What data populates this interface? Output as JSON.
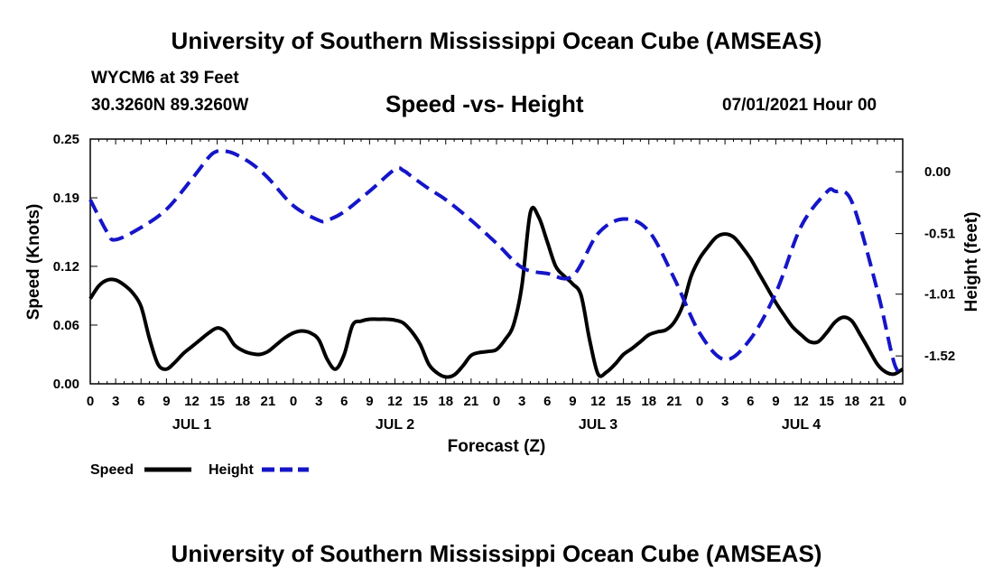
{
  "header": {
    "title": "University of Southern Mississippi Ocean Cube (AMSEAS)",
    "station": "WYCM6 at 39 Feet",
    "coords": "30.3260N  89.3260W",
    "chart_title": "Speed -vs- Height",
    "datetime": "07/01/2021 Hour 00"
  },
  "footer": {
    "title": "University of Southern Mississippi Ocean Cube (AMSEAS)"
  },
  "chart_data": {
    "type": "line",
    "title": "Speed -vs- Height",
    "xlabel": "Forecast (Z)",
    "ylabel_left": "Speed (Knots)",
    "ylabel_right": "Height (feet)",
    "xlim": [
      0,
      96
    ],
    "ylim_left": [
      0,
      0.25
    ],
    "ylim_right": [
      -1.75,
      0.27
    ],
    "x_tick_step": 3,
    "x_tick_labels": [
      "0",
      "3",
      "6",
      "9",
      "12",
      "15",
      "18",
      "21",
      "0",
      "3",
      "6",
      "9",
      "12",
      "15",
      "18",
      "21",
      "0",
      "3",
      "6",
      "9",
      "12",
      "15",
      "18",
      "21",
      "0",
      "3",
      "6",
      "9",
      "12",
      "15",
      "18",
      "21",
      "0"
    ],
    "y_left_ticks": [
      0.0,
      0.06,
      0.12,
      0.19,
      0.25
    ],
    "y_left_tick_labels": [
      "0.00",
      "0.06",
      "0.12",
      "0.19",
      "0.25"
    ],
    "y_right_ticks": [
      0.0,
      -0.51,
      -1.01,
      -1.52
    ],
    "y_right_tick_labels": [
      "0.00",
      "-0.51",
      "-1.01",
      "-1.52"
    ],
    "day_labels": [
      {
        "label": "JUL 1",
        "x": 12
      },
      {
        "label": "JUL 2",
        "x": 36
      },
      {
        "label": "JUL 3",
        "x": 60
      },
      {
        "label": "JUL 4",
        "x": 84
      }
    ],
    "series": [
      {
        "name": "Speed",
        "axis": "left",
        "color": "#000000",
        "dash": "solid",
        "x": [
          0,
          1,
          2,
          3,
          4,
          5,
          6,
          7,
          8,
          9,
          10,
          11,
          12,
          13,
          14,
          15,
          16,
          17,
          18,
          19,
          20,
          21,
          22,
          23,
          24,
          25,
          26,
          27,
          28,
          29,
          30,
          31,
          32,
          33,
          34,
          35,
          36,
          37,
          38,
          39,
          40,
          41,
          42,
          43,
          44,
          45,
          46,
          47,
          48,
          49,
          50,
          51,
          52,
          53,
          54,
          55,
          56,
          57,
          58,
          59,
          60,
          61,
          62,
          63,
          64,
          65,
          66,
          67,
          68,
          69,
          70,
          71,
          72,
          73,
          74,
          75,
          76,
          77,
          78,
          79,
          80,
          81,
          82,
          83,
          84,
          85,
          86,
          87,
          88,
          89,
          90,
          91,
          92,
          93,
          94,
          95,
          96
        ],
        "values": [
          0.087,
          0.1,
          0.106,
          0.106,
          0.101,
          0.093,
          0.079,
          0.046,
          0.02,
          0.015,
          0.022,
          0.031,
          0.038,
          0.045,
          0.052,
          0.057,
          0.053,
          0.04,
          0.034,
          0.031,
          0.03,
          0.033,
          0.04,
          0.047,
          0.052,
          0.054,
          0.052,
          0.045,
          0.025,
          0.015,
          0.03,
          0.06,
          0.064,
          0.066,
          0.066,
          0.066,
          0.065,
          0.062,
          0.053,
          0.04,
          0.02,
          0.011,
          0.007,
          0.009,
          0.018,
          0.029,
          0.032,
          0.033,
          0.035,
          0.045,
          0.06,
          0.1,
          0.175,
          0.17,
          0.145,
          0.12,
          0.11,
          0.102,
          0.09,
          0.045,
          0.01,
          0.012,
          0.02,
          0.03,
          0.036,
          0.043,
          0.05,
          0.053,
          0.055,
          0.063,
          0.08,
          0.11,
          0.128,
          0.14,
          0.15,
          0.153,
          0.15,
          0.14,
          0.128,
          0.113,
          0.098,
          0.083,
          0.07,
          0.058,
          0.05,
          0.043,
          0.043,
          0.052,
          0.063,
          0.068,
          0.064,
          0.05,
          0.035,
          0.02,
          0.012,
          0.01,
          0.015
        ],
        "note": "values array length 97 covering hours 0..96 (Jul 1 00Z - Jul 5 00Z)"
      },
      {
        "name": "Height",
        "axis": "right",
        "color": "#1515c8",
        "dash": "dashed",
        "x": [
          0,
          2,
          3,
          6,
          9,
          12,
          14,
          15,
          16,
          17,
          19,
          21,
          24,
          27,
          28,
          30,
          33,
          36,
          37,
          38,
          40,
          42,
          45,
          48,
          51,
          54,
          57,
          60,
          63,
          66,
          69,
          72,
          75,
          78,
          81,
          84,
          87,
          88,
          90,
          93,
          95,
          96
        ],
        "values": [
          -0.23,
          -0.5,
          -0.56,
          -0.46,
          -0.31,
          -0.06,
          0.12,
          0.17,
          0.17,
          0.15,
          0.07,
          -0.05,
          -0.28,
          -0.4,
          -0.4,
          -0.33,
          -0.16,
          0.02,
          0.01,
          -0.04,
          -0.14,
          -0.23,
          -0.4,
          -0.59,
          -0.79,
          -0.84,
          -0.86,
          -0.51,
          -0.39,
          -0.49,
          -0.88,
          -1.33,
          -1.55,
          -1.38,
          -1.0,
          -0.45,
          -0.17,
          -0.16,
          -0.25,
          -0.98,
          -1.58,
          -1.65
        ]
      }
    ],
    "legend": [
      {
        "label": "Speed",
        "color": "#000000",
        "dash": "solid"
      },
      {
        "label": "Height",
        "color": "#1515c8",
        "dash": "dashed"
      }
    ],
    "legend_position": "bottom-left"
  }
}
